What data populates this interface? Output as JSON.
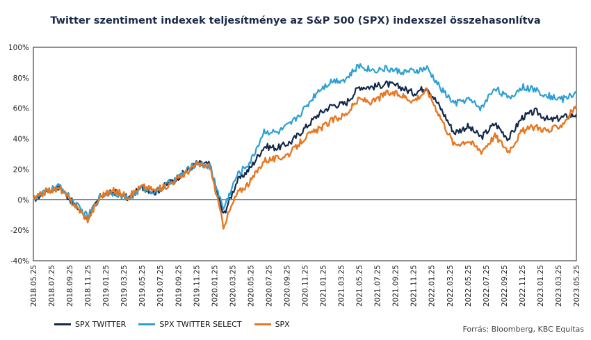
{
  "chart_data": {
    "type": "line",
    "title": "Twitter szentiment indexek teljesítménye  az S&P 500 (SPX) indexszel összehasonlítva",
    "xlabel": "",
    "ylabel": "",
    "ylim": [
      -40,
      100
    ],
    "yticks": [
      "100%",
      "80%",
      "60%",
      "40%",
      "20%",
      "0%",
      "-20%",
      "-40%"
    ],
    "xticks": [
      "2018.05.25",
      "2018.07.25",
      "2018.09.25",
      "2018.11.25",
      "2019.01.25",
      "2019.03.25",
      "2019.05.25",
      "2019.07.25",
      "2019.09.25",
      "2019.11.25",
      "2020.01.25",
      "2020.03.25",
      "2020.05.25",
      "2020.07.25",
      "2020.09.25",
      "2020.11.25",
      "2021.01.25",
      "2021.03.25",
      "2021.05.25",
      "2021.07.25",
      "2021.09.25",
      "2021.11.25",
      "2022.01.25",
      "2022.03.25",
      "2022.05.25",
      "2022.07.25",
      "2022.09.25",
      "2022.11.25",
      "2023.01.25",
      "2023.03.25",
      "2023.05.25"
    ],
    "grid": false,
    "legend_position": "bottom-left",
    "series": [
      {
        "name": "SPX TWITTER",
        "color": "#13284b",
        "values": [
          0,
          6,
          8,
          -3,
          -12,
          3,
          5,
          1,
          8,
          5,
          11,
          17,
          24,
          23,
          -10,
          12,
          21,
          35,
          34,
          38,
          47,
          56,
          62,
          63,
          74,
          74,
          76,
          74,
          70,
          74,
          60,
          44,
          48,
          41,
          50,
          40,
          54,
          58,
          52,
          54,
          56
        ]
      },
      {
        "name": "SPX TWITTER SELECT",
        "color": "#2e9fd3",
        "values": [
          0,
          6,
          9,
          -2,
          -11,
          3,
          5,
          0,
          8,
          5,
          11,
          17,
          24,
          22,
          -6,
          16,
          25,
          45,
          44,
          50,
          60,
          72,
          78,
          79,
          88,
          85,
          86,
          84,
          84,
          86,
          73,
          63,
          66,
          60,
          74,
          66,
          74,
          72,
          68,
          66,
          70
        ]
      },
      {
        "name": "SPX",
        "color": "#e87722",
        "values": [
          0,
          6,
          7,
          -3,
          -13,
          3,
          6,
          2,
          9,
          6,
          10,
          16,
          23,
          22,
          -17,
          4,
          12,
          26,
          27,
          31,
          41,
          46,
          52,
          56,
          66,
          64,
          70,
          69,
          65,
          72,
          54,
          36,
          39,
          32,
          42,
          32,
          45,
          48,
          45,
          50,
          62
        ]
      }
    ]
  },
  "source": "Forrás: Bloomberg,  KBC Equitas"
}
